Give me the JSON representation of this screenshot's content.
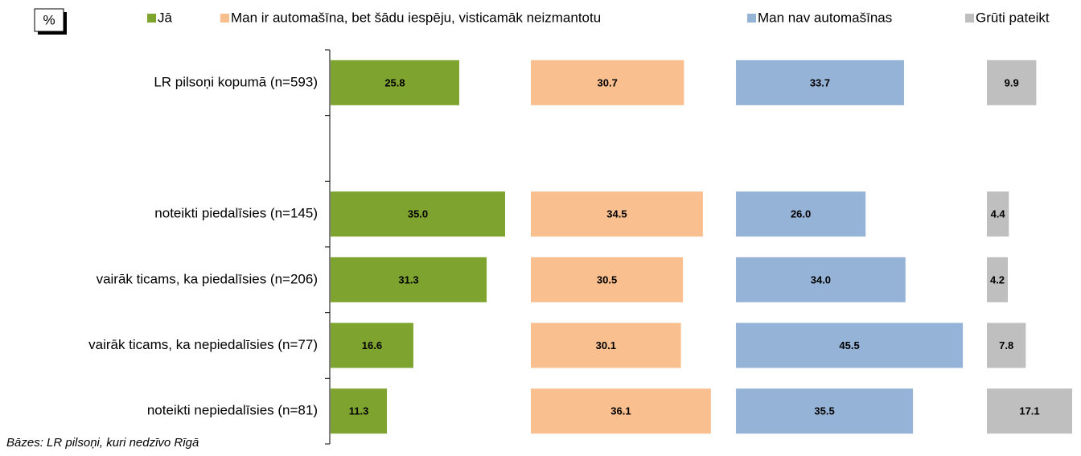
{
  "chart_data": {
    "type": "bar",
    "unit_label": "%",
    "footnote": "Bāzes: LR pilsoņi, kuri nedzīvo Rīgā",
    "categories": [
      "LR pilsoņi kopumā (n=593)",
      null,
      "noteikti piedalīsies (n=145)",
      "vairāk ticams, ka piedalīsies (n=206)",
      "vairāk ticams, ka nepiedalīsies (n=77)",
      "noteikti nepiedalīsies (n=81)"
    ],
    "series": [
      {
        "name": "Jā",
        "color": "#7ea32e",
        "values": [
          25.8,
          null,
          35.0,
          31.3,
          16.6,
          11.3
        ],
        "value_labels": [
          "25.8",
          null,
          "35.0",
          "31.3",
          "16.6",
          "11.3"
        ]
      },
      {
        "name": "Man ir automašīna, bet šādu iespēju, visticamāk neizmantotu",
        "color": "#f9bf8f",
        "values": [
          30.7,
          null,
          34.5,
          30.5,
          30.1,
          36.1
        ],
        "value_labels": [
          "30.7",
          null,
          "34.5",
          "30.5",
          "30.1",
          "36.1"
        ]
      },
      {
        "name": "Man nav automašīnas",
        "color": "#95b3d7",
        "values": [
          33.7,
          null,
          26.0,
          34.0,
          45.5,
          35.5
        ],
        "value_labels": [
          "33.7",
          null,
          "26.0",
          "34.0",
          "45.5",
          "35.5"
        ]
      },
      {
        "name": "Grūti pateikt",
        "color": "#bfbfbf",
        "values": [
          9.9,
          null,
          4.4,
          4.2,
          7.8,
          17.1
        ],
        "value_labels": [
          "9.9",
          null,
          "4.4",
          "4.2",
          "7.8",
          "17.1"
        ]
      }
    ]
  }
}
